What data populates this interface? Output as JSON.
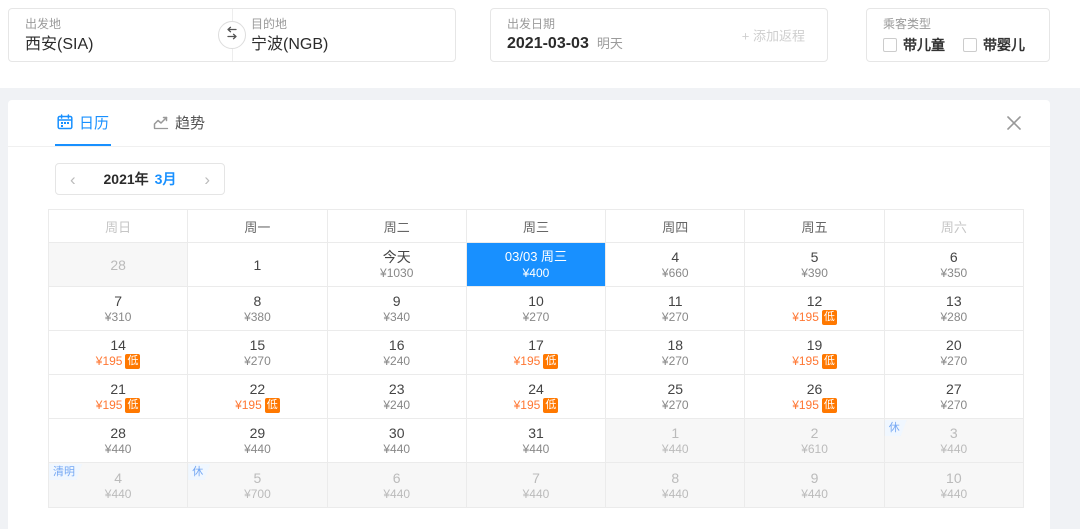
{
  "search_bar": {
    "route": {
      "from_label": "出发地",
      "from_value": "西安(SIA)",
      "to_label": "目的地",
      "to_value": "宁波(NGB)"
    },
    "date": {
      "label": "出发日期",
      "value": "2021-03-03",
      "hint": "明天",
      "add_return_label": "+ 添加返程"
    },
    "passenger": {
      "label": "乘客类型",
      "options": [
        {
          "label": "带儿童",
          "checked": false
        },
        {
          "label": "带婴儿",
          "checked": false
        }
      ]
    }
  },
  "panel": {
    "tabs": [
      {
        "label": "日历",
        "icon": "calendar-icon",
        "active": true
      },
      {
        "label": "趋势",
        "icon": "trend-icon",
        "active": false
      }
    ],
    "month_nav": {
      "prev": "‹",
      "year": "2021年",
      "month": "3月",
      "next": "›"
    },
    "calendar": {
      "low_badge_label": "低",
      "weekdays": [
        {
          "label": "周日",
          "muted": true
        },
        {
          "label": "周一",
          "muted": false
        },
        {
          "label": "周二",
          "muted": false
        },
        {
          "label": "周三",
          "muted": false
        },
        {
          "label": "周四",
          "muted": false
        },
        {
          "label": "周五",
          "muted": false
        },
        {
          "label": "周六",
          "muted": true
        }
      ],
      "weeks": [
        [
          {
            "day": "28",
            "price": "",
            "other": true
          },
          {
            "day": "1",
            "price": ""
          },
          {
            "day": "今天",
            "price": "¥1030"
          },
          {
            "day": "03/03 周三",
            "price": "¥400",
            "selected": true
          },
          {
            "day": "4",
            "price": "¥660"
          },
          {
            "day": "5",
            "price": "¥390"
          },
          {
            "day": "6",
            "price": "¥350"
          }
        ],
        [
          {
            "day": "7",
            "price": "¥310"
          },
          {
            "day": "8",
            "price": "¥380"
          },
          {
            "day": "9",
            "price": "¥340"
          },
          {
            "day": "10",
            "price": "¥270"
          },
          {
            "day": "11",
            "price": "¥270"
          },
          {
            "day": "12",
            "price": "¥195",
            "low": true
          },
          {
            "day": "13",
            "price": "¥280"
          }
        ],
        [
          {
            "day": "14",
            "price": "¥195",
            "low": true
          },
          {
            "day": "15",
            "price": "¥270"
          },
          {
            "day": "16",
            "price": "¥240"
          },
          {
            "day": "17",
            "price": "¥195",
            "low": true
          },
          {
            "day": "18",
            "price": "¥270"
          },
          {
            "day": "19",
            "price": "¥195",
            "low": true
          },
          {
            "day": "20",
            "price": "¥270"
          }
        ],
        [
          {
            "day": "21",
            "price": "¥195",
            "low": true
          },
          {
            "day": "22",
            "price": "¥195",
            "low": true
          },
          {
            "day": "23",
            "price": "¥240"
          },
          {
            "day": "24",
            "price": "¥195",
            "low": true
          },
          {
            "day": "25",
            "price": "¥270"
          },
          {
            "day": "26",
            "price": "¥195",
            "low": true
          },
          {
            "day": "27",
            "price": "¥270"
          }
        ],
        [
          {
            "day": "28",
            "price": "¥440"
          },
          {
            "day": "29",
            "price": "¥440"
          },
          {
            "day": "30",
            "price": "¥440"
          },
          {
            "day": "31",
            "price": "¥440"
          },
          {
            "day": "1",
            "price": "¥440",
            "other": true
          },
          {
            "day": "2",
            "price": "¥610",
            "other": true
          },
          {
            "day": "3",
            "price": "¥440",
            "other": true,
            "corner": "休"
          }
        ],
        [
          {
            "day": "4",
            "price": "¥440",
            "other": true,
            "corner": "清明"
          },
          {
            "day": "5",
            "price": "¥700",
            "other": true,
            "corner": "休"
          },
          {
            "day": "6",
            "price": "¥440",
            "other": true
          },
          {
            "day": "7",
            "price": "¥440",
            "other": true
          },
          {
            "day": "8",
            "price": "¥440",
            "other": true
          },
          {
            "day": "9",
            "price": "¥440",
            "other": true
          },
          {
            "day": "10",
            "price": "¥440",
            "other": true
          }
        ]
      ]
    }
  },
  "colors": {
    "accent": "#1890ff",
    "selected_cell_bg": "#1890ff",
    "low_price_text": "#ff7733",
    "low_badge_bg": "#ff7800",
    "holiday_badge_text": "#74a7f3",
    "page_bg": "#f0f2f5"
  }
}
